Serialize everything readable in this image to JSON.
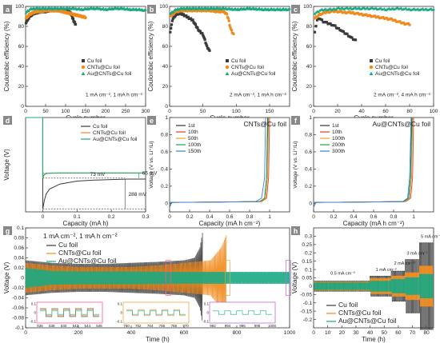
{
  "colors": {
    "cu": "#3a3a3a",
    "cnt": "#f08a1c",
    "au": "#1aa883",
    "letterBg": "#888888",
    "inset1": "#ff5a8a",
    "inset2": "#f3a63a",
    "inset3": "#c06ad6"
  },
  "chart_data": [
    {
      "id": "a",
      "type": "scatter",
      "letter": "a",
      "xlabel": "Cycle number",
      "ylabel": "Coulombic efficiency (%)",
      "xlim": [
        0,
        300
      ],
      "ylim": [
        0,
        100
      ],
      "xticks": [
        0,
        50,
        100,
        150,
        200,
        250,
        300
      ],
      "yticks": [
        0,
        20,
        40,
        60,
        80,
        100
      ],
      "legend": [
        "Cu foil",
        "CNTs@Cu foil",
        "Au@CNTs@Cu foil"
      ],
      "legend_position": "center-right",
      "annotation": "1 mA cm⁻², 1 mA h cm⁻²",
      "series": [
        {
          "name": "Cu foil",
          "x": [
            1,
            10,
            20,
            30,
            40,
            50,
            60,
            70,
            80,
            90,
            100,
            105,
            110,
            113,
            116,
            119,
            122,
            125
          ],
          "y": [
            84,
            90,
            93,
            94,
            95,
            95,
            96,
            96,
            96,
            96,
            96,
            95,
            94,
            93,
            90,
            87,
            84,
            82
          ]
        },
        {
          "name": "CNTs@Cu foil",
          "x": [
            1,
            10,
            20,
            30,
            40,
            50,
            60,
            70,
            80,
            90,
            100,
            110,
            120,
            130,
            140,
            150
          ],
          "y": [
            88,
            92,
            94,
            95,
            95,
            96,
            96,
            96,
            96,
            95,
            94,
            93,
            92,
            91,
            90,
            89
          ]
        },
        {
          "name": "Au@CNTs@Cu foil",
          "x": [
            1,
            10,
            20,
            40,
            60,
            80,
            100,
            120,
            140,
            160,
            180,
            200,
            220,
            240,
            260,
            280,
            300
          ],
          "y": [
            94,
            97,
            98,
            98,
            98,
            98,
            98,
            98,
            97,
            98,
            98,
            97,
            98,
            98,
            97,
            97,
            96
          ]
        }
      ]
    },
    {
      "id": "b",
      "type": "scatter",
      "letter": "b",
      "xlabel": "Cycle number",
      "ylabel": "Coulombic efficiency (%)",
      "xlim": [
        0,
        180
      ],
      "ylim": [
        0,
        100
      ],
      "xticks": [
        0,
        50,
        100,
        150
      ],
      "yticks": [
        0,
        20,
        40,
        60,
        80,
        100
      ],
      "legend": [
        "Cu foil",
        "CNTs@Cu foil",
        "Au@CNTs@Cu foil"
      ],
      "legend_position": "center-right",
      "annotation": "2 mA cm⁻², 1 mA h cm⁻²",
      "series": [
        {
          "name": "Cu foil",
          "x": [
            1,
            5,
            10,
            15,
            20,
            25,
            30,
            35,
            40,
            45,
            50,
            52,
            54,
            56,
            58,
            60
          ],
          "y": [
            75,
            88,
            92,
            93,
            92,
            90,
            88,
            86,
            80,
            75,
            72,
            68,
            64,
            60,
            58,
            55
          ]
        },
        {
          "name": "CNTs@Cu foil",
          "x": [
            1,
            10,
            20,
            30,
            40,
            50,
            60,
            70,
            80,
            85,
            88,
            90,
            92,
            94,
            96
          ],
          "y": [
            90,
            95,
            96,
            96,
            96,
            96,
            96,
            95,
            95,
            93,
            88,
            82,
            77,
            74,
            72
          ]
        },
        {
          "name": "Au@CNTs@Cu foil",
          "x": [
            1,
            10,
            20,
            40,
            60,
            80,
            100,
            120,
            140,
            160,
            180
          ],
          "y": [
            93,
            97,
            98,
            98,
            98,
            98,
            97,
            98,
            97,
            97,
            97
          ]
        }
      ]
    },
    {
      "id": "c",
      "type": "scatter",
      "letter": "c",
      "xlabel": "Cycle number",
      "ylabel": "Coulombic efficiency (%)",
      "xlim": [
        0,
        100
      ],
      "ylim": [
        0,
        100
      ],
      "xticks": [
        0,
        20,
        40,
        60,
        80,
        100
      ],
      "yticks": [
        0,
        20,
        40,
        60,
        80,
        100
      ],
      "legend": [
        "Cu foil",
        "CNTs@Cu foil",
        "Au@CNTs@Cu foil"
      ],
      "legend_position": "center-right",
      "annotation": "2 mA cm⁻², 4 mA h cm⁻²",
      "series": [
        {
          "name": "Cu foil",
          "x": [
            1,
            3,
            5,
            8,
            10,
            12,
            15,
            18,
            20,
            22,
            25,
            28,
            30,
            32,
            35
          ],
          "y": [
            75,
            86,
            88,
            85,
            84,
            83,
            82,
            80,
            78,
            77,
            74,
            72,
            70,
            68,
            66
          ]
        },
        {
          "name": "CNTs@Cu foil",
          "x": [
            1,
            5,
            10,
            15,
            20,
            25,
            30,
            35,
            40,
            45,
            50,
            55,
            60,
            65,
            70,
            75,
            80
          ],
          "y": [
            88,
            92,
            94,
            95,
            95,
            94,
            94,
            93,
            92,
            91,
            90,
            89,
            88,
            87,
            85,
            83,
            82
          ]
        },
        {
          "name": "Au@CNTs@Cu foil",
          "x": [
            1,
            5,
            10,
            15,
            20,
            30,
            40,
            50,
            60,
            70,
            80,
            90,
            100
          ],
          "y": [
            93,
            96,
            97,
            97,
            98,
            98,
            98,
            98,
            97,
            98,
            97,
            97,
            97
          ]
        }
      ]
    },
    {
      "id": "d",
      "type": "line",
      "letter": "d",
      "xlabel": "Capacity (mA h)",
      "ylabel": "Voltage (V)",
      "xlim": [
        -0.05,
        0.3
      ],
      "ylim": [
        -0.45,
        0.5
      ],
      "xticks": [
        0.0,
        0.1,
        0.2,
        0.3
      ],
      "legend": [
        "Cu foil",
        "CNTs@Cu foil",
        "Au@CNTs@Cu foil"
      ],
      "legend_position": "top-right",
      "annotations": [
        "73 mV",
        "66 mV",
        "288 mV"
      ],
      "series": [
        {
          "name": "Cu foil",
          "x": [
            0.0,
            0.005,
            0.01,
            0.02,
            0.05,
            0.1,
            0.15,
            0.2,
            0.25,
            0.3
          ],
          "y": [
            -0.42,
            -0.33,
            -0.27,
            -0.22,
            -0.17,
            -0.14,
            -0.13,
            -0.125,
            -0.12,
            -0.12
          ]
        },
        {
          "name": "CNTs@Cu foil",
          "x": [
            0.0,
            0.005,
            0.01,
            0.02,
            0.05,
            0.1,
            0.2,
            0.3
          ],
          "y": [
            -0.11,
            -0.075,
            -0.065,
            -0.062,
            -0.06,
            -0.06,
            -0.06,
            -0.06
          ]
        },
        {
          "name": "Au@CNTs@Cu foil",
          "x": [
            0.0,
            0.005,
            0.01,
            0.02,
            0.05,
            0.1,
            0.2,
            0.3
          ],
          "y": [
            -0.1,
            -0.07,
            -0.062,
            -0.06,
            -0.058,
            -0.058,
            -0.058,
            -0.058
          ]
        }
      ]
    },
    {
      "id": "e",
      "type": "line",
      "letter": "e",
      "xlabel": "Capacity (mA h cm⁻²)",
      "ylabel": "Voltage (V vs. Li⁺/Li)",
      "xlim": [
        0.0,
        1.2
      ],
      "ylim": [
        -0.1,
        1.0
      ],
      "xticks": [
        0.0,
        0.2,
        0.4,
        0.6,
        0.8,
        1.0
      ],
      "yticks": [
        0.0,
        0.2,
        0.4,
        0.6,
        0.8,
        1.0
      ],
      "title": "CNTs@Cu foil",
      "legend": [
        "1st",
        "10th",
        "50th",
        "100th",
        "150th"
      ],
      "legend_position": "top-left",
      "series": [
        {
          "name": "1st",
          "x": [
            0.0,
            0.5,
            0.9,
            0.95,
            0.97,
            0.98
          ],
          "y": [
            0.01,
            0.015,
            0.02,
            0.06,
            0.3,
            1.0
          ]
        },
        {
          "name": "10th",
          "x": [
            0.0,
            0.5,
            0.92,
            0.97,
            0.99,
            1.0
          ],
          "y": [
            0.01,
            0.015,
            0.02,
            0.06,
            0.3,
            1.0
          ]
        },
        {
          "name": "50th",
          "x": [
            0.0,
            0.5,
            0.91,
            0.96,
            0.98,
            0.99
          ],
          "y": [
            0.01,
            0.015,
            0.02,
            0.06,
            0.3,
            1.0
          ]
        },
        {
          "name": "100th",
          "x": [
            0.0,
            0.5,
            0.9,
            0.95,
            0.97,
            0.985
          ],
          "y": [
            0.01,
            0.015,
            0.02,
            0.06,
            0.3,
            1.0
          ]
        },
        {
          "name": "150th",
          "x": [
            0.0,
            0.5,
            0.86,
            0.92,
            0.95,
            0.96
          ],
          "y": [
            0.01,
            0.015,
            0.02,
            0.06,
            0.3,
            1.0
          ]
        }
      ]
    },
    {
      "id": "f",
      "type": "line",
      "letter": "f",
      "xlabel": "Capacity (mA h cm⁻²)",
      "ylabel": "Voltage (V vs. Li⁺/Li)",
      "xlim": [
        0.0,
        1.2
      ],
      "ylim": [
        -0.1,
        1.0
      ],
      "xticks": [
        0.0,
        0.2,
        0.4,
        0.6,
        0.8,
        1.0
      ],
      "yticks": [
        0.0,
        0.2,
        0.4,
        0.6,
        0.8,
        1.0
      ],
      "title": "Au@CNTs@Cu foil",
      "legend": [
        "1st",
        "10th",
        "100th",
        "200th",
        "300th"
      ],
      "legend_position": "top-left",
      "series": [
        {
          "name": "1st",
          "x": [
            0.0,
            0.5,
            0.9,
            0.95,
            0.97,
            0.98
          ],
          "y": [
            0.01,
            0.015,
            0.02,
            0.06,
            0.3,
            1.0
          ]
        },
        {
          "name": "10th",
          "x": [
            0.0,
            0.5,
            0.92,
            0.97,
            0.99,
            1.0
          ],
          "y": [
            0.01,
            0.015,
            0.02,
            0.06,
            0.3,
            1.0
          ]
        },
        {
          "name": "100th",
          "x": [
            0.0,
            0.5,
            0.91,
            0.96,
            0.98,
            0.99
          ],
          "y": [
            0.01,
            0.015,
            0.02,
            0.06,
            0.3,
            1.0
          ]
        },
        {
          "name": "200th",
          "x": [
            0.0,
            0.5,
            0.9,
            0.95,
            0.97,
            0.985
          ],
          "y": [
            0.01,
            0.015,
            0.02,
            0.06,
            0.3,
            1.0
          ]
        },
        {
          "name": "300th",
          "x": [
            0.0,
            0.5,
            0.89,
            0.94,
            0.96,
            0.975
          ],
          "y": [
            0.01,
            0.015,
            0.02,
            0.06,
            0.3,
            1.0
          ]
        }
      ]
    },
    {
      "id": "g",
      "type": "line",
      "letter": "g",
      "xlabel": "Time (h)",
      "ylabel": "Voltage (V)",
      "xlim": [
        0,
        1000
      ],
      "ylim": [
        -0.1,
        0.1
      ],
      "xticks": [
        0,
        200,
        400,
        600,
        800,
        1000
      ],
      "yticks": [
        -0.1,
        -0.08,
        -0.06,
        -0.04,
        -0.02,
        0.0,
        0.02,
        0.04,
        0.06,
        0.08,
        0.1
      ],
      "legend": [
        "Cu foil",
        "CNTs@Cu foil",
        "Au@CNTs@Cu foil"
      ],
      "legend_position": "top-left",
      "annotation": "1 mA cm⁻², 1 mA h cm⁻²",
      "series": [
        {
          "name": "Cu foil",
          "t": [
            0,
            100,
            200,
            300,
            400,
            500,
            600,
            640,
            660,
            670
          ],
          "amp": [
            0.035,
            0.03,
            0.028,
            0.028,
            0.03,
            0.032,
            0.035,
            0.04,
            0.06,
            0.09
          ]
        },
        {
          "name": "CNTs@Cu foil",
          "t": [
            0,
            100,
            200,
            300,
            400,
            500,
            600,
            700,
            740,
            760
          ],
          "amp": [
            0.03,
            0.025,
            0.022,
            0.022,
            0.022,
            0.025,
            0.03,
            0.035,
            0.06,
            0.085
          ]
        },
        {
          "name": "Au@CNTs@Cu foil",
          "t": [
            0,
            100,
            200,
            400,
            600,
            800,
            1000
          ],
          "amp": [
            0.02,
            0.014,
            0.013,
            0.013,
            0.012,
            0.012,
            0.012
          ]
        }
      ],
      "insets": [
        {
          "xticks": [
            536,
            538,
            540,
            542,
            544,
            546
          ],
          "yticks": [
            -0.1,
            -0.05,
            0.0,
            0.05,
            0.1
          ]
        },
        {
          "xticks": [
            760,
            762,
            764,
            766,
            768,
            770
          ],
          "yticks": [
            -0.1,
            -0.05,
            0.0,
            0.05,
            0.1
          ]
        },
        {
          "xticks": [
            992,
            994,
            996,
            998,
            1000
          ],
          "yticks": [
            -0.1,
            -0.05,
            0.0,
            0.05,
            0.1
          ]
        }
      ]
    },
    {
      "id": "h",
      "type": "line",
      "letter": "h",
      "xlabel": "Time (h)",
      "ylabel": "Voltage (V)",
      "xlim": [
        0,
        85
      ],
      "ylim": [
        -0.25,
        0.35
      ],
      "xticks": [
        0,
        10,
        20,
        30,
        40,
        50,
        60,
        70,
        80
      ],
      "yticks": [
        -0.2,
        -0.15,
        -0.1,
        -0.05,
        0.0,
        0.05,
        0.1,
        0.15,
        0.2,
        0.25,
        0.3
      ],
      "legend": [
        "Cu foil",
        "CNTs@Cu foil",
        "Au@CNTs@Cu foil"
      ],
      "legend_position": "bottom-left",
      "rates": [
        {
          "label": "0.5 mA cm⁻²",
          "t0": 0,
          "t1": 40,
          "amp_cu": 0.03,
          "amp_cnt": 0.025,
          "amp_au": 0.02
        },
        {
          "label": "1 mA cm⁻²",
          "t0": 40,
          "t1": 55,
          "amp_cu": 0.06,
          "amp_cnt": 0.045,
          "amp_au": 0.03
        },
        {
          "label": "2 mA cm⁻²",
          "t0": 55,
          "t1": 65,
          "amp_cu": 0.09,
          "amp_cnt": 0.06,
          "amp_au": 0.04
        },
        {
          "label": "3 mA cm⁻²",
          "t0": 65,
          "t1": 75,
          "amp_cu": 0.16,
          "amp_cnt": 0.08,
          "amp_au": 0.05
        },
        {
          "label": "5 mA cm⁻²",
          "t0": 75,
          "t1": 85,
          "amp_cu": 0.26,
          "amp_cnt": 0.12,
          "amp_au": 0.07
        }
      ]
    }
  ]
}
